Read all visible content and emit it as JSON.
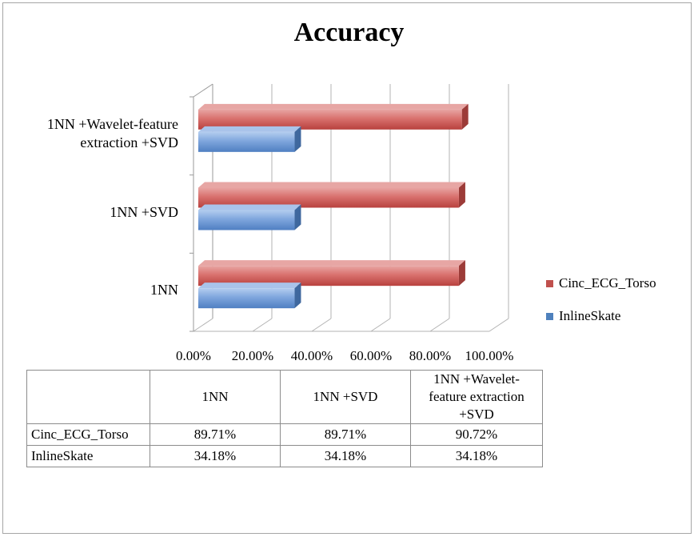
{
  "chart_data": {
    "type": "bar",
    "orientation": "horizontal",
    "style": "3d-clustered-bar",
    "title": "Accuracy",
    "categories": [
      "1NN",
      "1NN +SVD",
      "1NN +Wavelet-feature extraction +SVD"
    ],
    "category_label_lines": [
      [
        "1NN"
      ],
      [
        "1NN +SVD"
      ],
      [
        "1NN +Wavelet-feature",
        "extraction +SVD"
      ]
    ],
    "series": [
      {
        "name": "Cinc_ECG_Torso",
        "values": [
          89.71,
          89.71,
          90.72
        ],
        "color": "#c0504d"
      },
      {
        "name": "InlineSkate",
        "values": [
          34.18,
          34.18,
          34.18
        ],
        "color": "#4f81bd"
      }
    ],
    "x_ticks": [
      "0.00%",
      "20.00%",
      "40.00%",
      "60.00%",
      "80.00%",
      "100.00%"
    ],
    "xlim": [
      0,
      100
    ],
    "grid": true,
    "legend_position": "right",
    "data_table": {
      "header_lines": [
        [
          "1NN"
        ],
        [
          "1NN +SVD"
        ],
        [
          "1NN +Wavelet-",
          "feature extraction",
          "+SVD"
        ]
      ],
      "rows": [
        {
          "label": "Cinc_ECG_Torso",
          "cells": [
            "89.71%",
            "89.71%",
            "90.72%"
          ]
        },
        {
          "label": "InlineSkate",
          "cells": [
            "34.18%",
            "34.18%",
            "34.18%"
          ]
        }
      ]
    }
  }
}
